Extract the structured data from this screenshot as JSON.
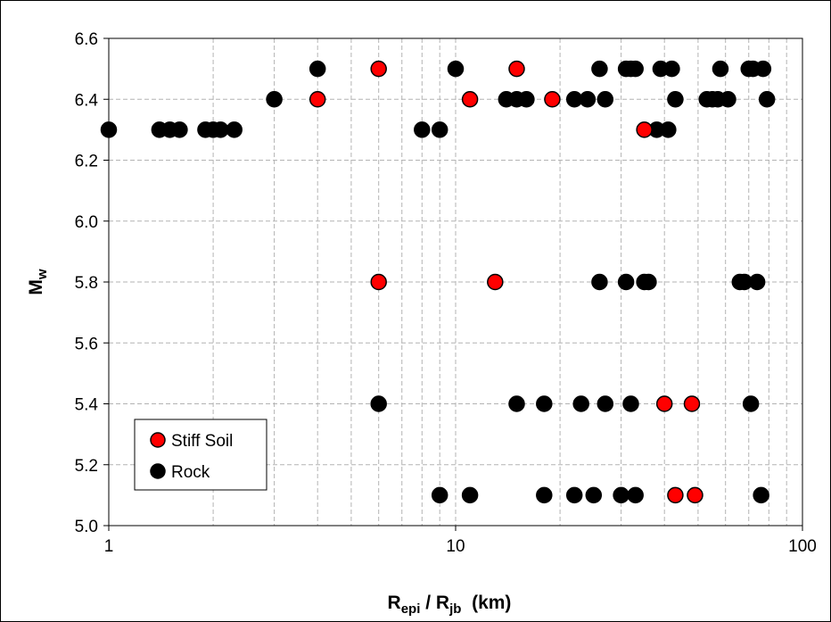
{
  "chart_data": {
    "type": "scatter",
    "xscale": "log",
    "xlim": [
      1,
      100
    ],
    "ylim": [
      5.0,
      6.6
    ],
    "grid": true,
    "legend_position": "bottom-left",
    "xlabel": {
      "main": "R",
      "sub1": "epi",
      "sep": " / R",
      "sub2": "jb",
      "unit": "  (km)"
    },
    "ylabel": {
      "main": "M",
      "sub": "w"
    },
    "x_ticks": [
      {
        "value": 1,
        "label": "1"
      },
      {
        "value": 10,
        "label": "10"
      },
      {
        "value": 100,
        "label": "100"
      }
    ],
    "y_ticks": [
      {
        "value": 5.0,
        "label": "5.0"
      },
      {
        "value": 5.2,
        "label": "5.2"
      },
      {
        "value": 5.4,
        "label": "5.4"
      },
      {
        "value": 5.6,
        "label": "5.6"
      },
      {
        "value": 5.8,
        "label": "5.8"
      },
      {
        "value": 6.0,
        "label": "6.0"
      },
      {
        "value": 6.2,
        "label": "6.2"
      },
      {
        "value": 6.4,
        "label": "6.4"
      },
      {
        "value": 6.6,
        "label": "6.6"
      }
    ],
    "series": [
      {
        "name": "Stiff Soil",
        "color": "#ff0000",
        "points": [
          [
            4,
            6.4
          ],
          [
            6,
            6.5
          ],
          [
            11,
            6.4
          ],
          [
            15,
            6.5
          ],
          [
            19,
            6.4
          ],
          [
            35,
            6.3
          ],
          [
            6,
            5.8
          ],
          [
            13,
            5.8
          ],
          [
            40,
            5.4
          ],
          [
            48,
            5.4
          ],
          [
            43,
            5.1
          ],
          [
            49,
            5.1
          ]
        ]
      },
      {
        "name": "Rock",
        "color": "#000000",
        "points": [
          [
            1,
            6.3
          ],
          [
            1.4,
            6.3
          ],
          [
            1.5,
            6.3
          ],
          [
            1.6,
            6.3
          ],
          [
            1.9,
            6.3
          ],
          [
            2.0,
            6.3
          ],
          [
            2.1,
            6.3
          ],
          [
            2.3,
            6.3
          ],
          [
            8,
            6.3
          ],
          [
            9,
            6.3
          ],
          [
            38,
            6.3
          ],
          [
            41,
            6.3
          ],
          [
            3,
            6.4
          ],
          [
            14,
            6.4
          ],
          [
            15,
            6.4
          ],
          [
            16,
            6.4
          ],
          [
            22,
            6.4
          ],
          [
            24,
            6.4
          ],
          [
            27,
            6.4
          ],
          [
            43,
            6.4
          ],
          [
            53,
            6.4
          ],
          [
            55,
            6.4
          ],
          [
            57,
            6.4
          ],
          [
            61,
            6.4
          ],
          [
            79,
            6.4
          ],
          [
            4,
            6.5
          ],
          [
            10,
            6.5
          ],
          [
            26,
            6.5
          ],
          [
            31,
            6.5
          ],
          [
            32,
            6.5
          ],
          [
            33,
            6.5
          ],
          [
            39,
            6.5
          ],
          [
            42,
            6.5
          ],
          [
            58,
            6.5
          ],
          [
            70,
            6.5
          ],
          [
            72,
            6.5
          ],
          [
            77,
            6.5
          ],
          [
            26,
            5.8
          ],
          [
            31,
            5.8
          ],
          [
            35,
            5.8
          ],
          [
            36,
            5.8
          ],
          [
            66,
            5.8
          ],
          [
            68,
            5.8
          ],
          [
            74,
            5.8
          ],
          [
            6,
            5.4
          ],
          [
            15,
            5.4
          ],
          [
            18,
            5.4
          ],
          [
            23,
            5.4
          ],
          [
            27,
            5.4
          ],
          [
            32,
            5.4
          ],
          [
            71,
            5.4
          ],
          [
            9,
            5.1
          ],
          [
            11,
            5.1
          ],
          [
            18,
            5.1
          ],
          [
            22,
            5.1
          ],
          [
            25,
            5.1
          ],
          [
            30,
            5.1
          ],
          [
            33,
            5.1
          ],
          [
            76,
            5.1
          ]
        ]
      }
    ]
  }
}
